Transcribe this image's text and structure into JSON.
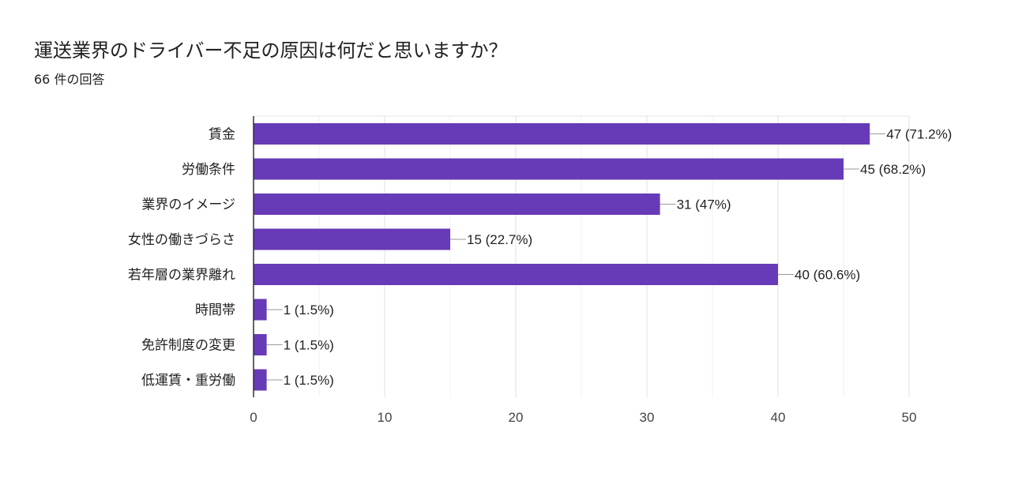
{
  "question": {
    "title": "運送業界のドライバー不足の原因は何だと思いますか？",
    "response_count": "66 件の回答"
  },
  "chart_data": {
    "type": "bar",
    "orientation": "horizontal",
    "title": "運送業界のドライバー不足の原因は何だと思いますか？",
    "categories": [
      "賃金",
      "労働条件",
      "業界のイメージ",
      "女性の働きづらさ",
      "若年層の業界離れ",
      "時間帯",
      "免許制度の変更",
      "低運賃・重労働"
    ],
    "values": [
      47,
      45,
      31,
      15,
      40,
      1,
      1,
      1
    ],
    "data_labels": [
      "47 (71.2%)",
      "45 (68.2%)",
      "31 (47%)",
      "15 (22.7%)",
      "40 (60.6%)",
      "1 (1.5%)",
      "1 (1.5%)",
      "1 (1.5%)"
    ],
    "xlim": [
      0,
      50
    ],
    "xticks": [
      0,
      10,
      20,
      30,
      40,
      50
    ],
    "minor_gridlines": true,
    "grid": true,
    "legend": "none",
    "bar_color": "#673ab7"
  }
}
